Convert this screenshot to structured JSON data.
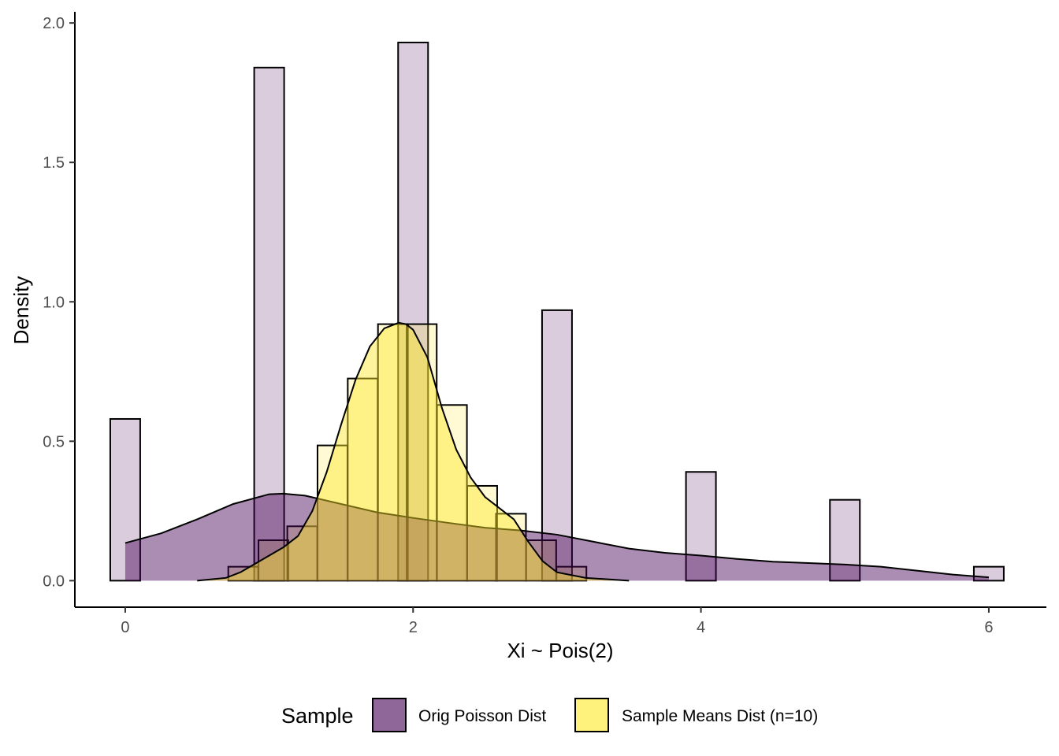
{
  "chart_data": {
    "type": "histogram+density",
    "xlabel": "Xi ~ Pois(2)",
    "ylabel": "Density",
    "xlim": [
      -0.35,
      6.4
    ],
    "ylim": [
      -0.095,
      2.04
    ],
    "x_ticks": [
      0,
      2,
      4,
      6
    ],
    "y_ticks": [
      0.0,
      0.5,
      1.0,
      1.5,
      2.0
    ],
    "x_tick_labels": [
      "0",
      "2",
      "4",
      "6"
    ],
    "y_tick_labels": [
      "0.0",
      "0.5",
      "1.0",
      "1.5",
      "2.0"
    ],
    "grid": false,
    "legend": {
      "title": "Sample",
      "position": "bottom",
      "entries": [
        "Orig Poisson Dist",
        "Sample Means Dist (n=10)"
      ]
    },
    "series": [
      {
        "name": "Orig Poisson Dist",
        "color": "#440154",
        "hist_bin_width": 0.208,
        "hist_bins": [
          {
            "x": 0,
            "density": 0.58
          },
          {
            "x": 1,
            "density": 1.84
          },
          {
            "x": 2,
            "density": 1.93
          },
          {
            "x": 3,
            "density": 0.97
          },
          {
            "x": 4,
            "density": 0.39
          },
          {
            "x": 5,
            "density": 0.29
          },
          {
            "x": 6,
            "density": 0.05
          }
        ],
        "density_curve": {
          "x": [
            0,
            0.25,
            0.5,
            0.75,
            1.0,
            1.1,
            1.25,
            1.5,
            1.75,
            2.0,
            2.25,
            2.5,
            2.75,
            3.0,
            3.25,
            3.5,
            3.75,
            4.0,
            4.25,
            4.5,
            4.75,
            5.0,
            5.25,
            5.5,
            5.75,
            6.0
          ],
          "y": [
            0.135,
            0.17,
            0.22,
            0.275,
            0.31,
            0.312,
            0.305,
            0.275,
            0.245,
            0.225,
            0.207,
            0.19,
            0.18,
            0.165,
            0.14,
            0.115,
            0.1,
            0.09,
            0.078,
            0.068,
            0.063,
            0.058,
            0.05,
            0.036,
            0.022,
            0.012
          ]
        }
      },
      {
        "name": "Sample Means Dist (n=10)",
        "color": "#FDE725",
        "hist_bin_width": 0.208,
        "hist_bins": [
          {
            "x": 0.82,
            "density": 0.05
          },
          {
            "x": 1.03,
            "density": 0.145
          },
          {
            "x": 1.23,
            "density": 0.195
          },
          {
            "x": 1.44,
            "density": 0.485
          },
          {
            "x": 1.65,
            "density": 0.725
          },
          {
            "x": 1.86,
            "density": 0.92
          },
          {
            "x": 2.06,
            "density": 0.92
          },
          {
            "x": 2.27,
            "density": 0.63
          },
          {
            "x": 2.48,
            "density": 0.34
          },
          {
            "x": 2.68,
            "density": 0.24
          },
          {
            "x": 2.89,
            "density": 0.145
          },
          {
            "x": 3.1,
            "density": 0.05
          }
        ],
        "density_curve": {
          "x": [
            0.5,
            0.7,
            0.8,
            0.9,
            1.0,
            1.1,
            1.2,
            1.3,
            1.4,
            1.5,
            1.6,
            1.7,
            1.8,
            1.9,
            1.95,
            2.0,
            2.1,
            2.2,
            2.3,
            2.4,
            2.5,
            2.6,
            2.7,
            2.8,
            2.9,
            3.0,
            3.2,
            3.5
          ],
          "y": [
            0.0,
            0.01,
            0.03,
            0.06,
            0.09,
            0.12,
            0.16,
            0.25,
            0.39,
            0.56,
            0.72,
            0.84,
            0.905,
            0.925,
            0.92,
            0.9,
            0.8,
            0.62,
            0.47,
            0.37,
            0.3,
            0.26,
            0.22,
            0.14,
            0.07,
            0.03,
            0.01,
            0.0
          ]
        }
      }
    ]
  }
}
